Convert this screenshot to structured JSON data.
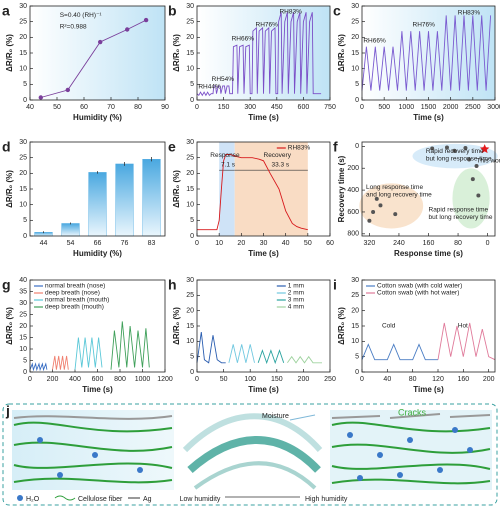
{
  "chart_data": [
    {
      "type": "line",
      "panel": "a",
      "xlabel": "Humidity (%)",
      "ylabel": "ΔR/R₀ (%)",
      "xlim": [
        40,
        90
      ],
      "xticks": [
        40,
        50,
        60,
        70,
        80,
        90
      ],
      "ylim": [
        0,
        30
      ],
      "yticks": [
        0,
        5,
        10,
        15,
        20,
        25,
        30
      ],
      "series": [
        {
          "color": "#7a3f9b",
          "markers": true,
          "x": [
            44,
            54,
            66,
            76,
            83
          ],
          "values": [
            0.8,
            3.2,
            18.5,
            22.5,
            25.5
          ]
        }
      ],
      "annotations": [
        "S=0.40 (RH)⁻¹",
        "R²=0.988"
      ]
    },
    {
      "type": "line",
      "panel": "b",
      "xlabel": "Time (s)",
      "ylabel": "ΔR/R₀ (%)",
      "xlim": [
        0,
        750
      ],
      "xticks": [
        0,
        150,
        300,
        450,
        600,
        750
      ],
      "ylim": [
        0,
        30
      ],
      "yticks": [
        0,
        5,
        10,
        15,
        20,
        25,
        30
      ],
      "series": [
        {
          "color": "#7b4fc8",
          "x": [
            0,
            10,
            20,
            30,
            40,
            50,
            60,
            70,
            80,
            90,
            95,
            105,
            110,
            120,
            130,
            135,
            145,
            155,
            160,
            170,
            180,
            185,
            200,
            205,
            225,
            230,
            240,
            260,
            265,
            275,
            295,
            300,
            310,
            315,
            335,
            340,
            350,
            370,
            375,
            385,
            405,
            410,
            420,
            440,
            445,
            455,
            460,
            475,
            480,
            495,
            510,
            515,
            530,
            545,
            550,
            565,
            580,
            585,
            600,
            615,
            620,
            635,
            650,
            655,
            700
          ],
          "values": [
            2,
            1.5,
            2.5,
            1.5,
            2.5,
            1.5,
            2.5,
            1.5,
            2,
            2,
            4.5,
            4.5,
            2,
            4.5,
            4.5,
            2,
            4.5,
            4.5,
            2,
            4.5,
            4.5,
            2,
            2,
            17,
            17.5,
            2,
            17,
            17.5,
            2,
            17,
            17.5,
            2,
            2,
            22,
            23,
            2,
            22,
            23,
            2,
            22,
            23,
            2,
            22,
            23,
            2,
            2,
            25,
            28,
            2,
            25,
            28,
            2,
            25,
            28,
            2,
            25,
            28,
            2,
            25,
            28,
            2,
            25,
            28,
            2,
            2
          ]
        }
      ],
      "annotations": [
        "RH44%",
        "RH54%",
        "RH66%",
        "RH76%",
        "RH83%"
      ]
    },
    {
      "type": "line",
      "panel": "c",
      "xlabel": "Time (s)",
      "ylabel": "ΔR/R₀ (%)",
      "xlim": [
        0,
        3000
      ],
      "xticks": [
        0,
        500,
        1000,
        1500,
        2000,
        2500,
        3000
      ],
      "ylim": [
        0,
        30
      ],
      "yticks": [
        0,
        5,
        10,
        15,
        20,
        25,
        30
      ],
      "series": [
        {
          "color": "#7a5bd0",
          "x": [
            0,
            100,
            200,
            300,
            400,
            500,
            600,
            700,
            800,
            900,
            1000,
            1100,
            1200,
            1300,
            1400,
            1500,
            1600,
            1700,
            1800,
            1900,
            2000,
            2100,
            2200,
            2300,
            2400,
            2500,
            2600,
            2700,
            2800,
            2900
          ],
          "values": [
            3,
            17,
            3,
            17,
            3,
            17,
            3,
            17,
            3,
            22,
            3,
            22,
            3,
            22,
            3,
            22,
            3,
            22,
            3,
            27,
            3,
            27,
            3,
            27,
            3,
            27,
            3,
            27,
            3,
            27
          ]
        }
      ],
      "annotations": [
        "RH66%",
        "RH76%",
        "RH83%"
      ]
    },
    {
      "type": "bar",
      "panel": "d",
      "xlabel": "Humidity (%)",
      "ylabel": "ΔR/R₀ (%)",
      "color": "#4aa8e0",
      "categories": [
        "44",
        "54",
        "66",
        "76",
        "83"
      ],
      "values": [
        1.2,
        4,
        20.3,
        23,
        24.5
      ],
      "errors": [
        0.3,
        0.3,
        0.4,
        0.6,
        0.7
      ],
      "ylim": [
        0,
        30
      ],
      "yticks": [
        0,
        5,
        10,
        15,
        20,
        25,
        30
      ]
    },
    {
      "type": "line",
      "panel": "e",
      "xlabel": "Time (s)",
      "ylabel": "ΔR/R₀ (%)",
      "legend": "upper right",
      "xlim": [
        0,
        60
      ],
      "xticks": [
        0,
        10,
        20,
        30,
        40,
        50,
        60
      ],
      "ylim": [
        0,
        30
      ],
      "yticks": [
        0,
        5,
        10,
        15,
        20,
        25,
        30
      ],
      "series": [
        {
          "name": "RH83%",
          "color": "#d7191c",
          "x": [
            0,
            5,
            9,
            10,
            11,
            12,
            13,
            15,
            17,
            20,
            25,
            28,
            30,
            33,
            37,
            40,
            43,
            45,
            47,
            50
          ],
          "values": [
            2,
            2,
            2,
            5,
            15,
            24,
            26,
            26,
            25.5,
            25,
            25,
            24.5,
            24,
            20,
            15,
            8,
            4,
            3,
            2.5,
            2
          ]
        }
      ],
      "annotations": [
        "Response",
        "7.1 s",
        "Recovery",
        "33.3 s"
      ]
    },
    {
      "type": "scatter",
      "panel": "f",
      "xlabel": "Response time (s)",
      "ylabel": "Recovery time (s)",
      "xlim": [
        340,
        -20
      ],
      "xticks": [
        320,
        240,
        160,
        80,
        0
      ],
      "ylim": [
        820,
        -40
      ],
      "yticks": [
        0,
        200,
        400,
        600,
        800
      ],
      "series": [
        {
          "color": "#e41a1c",
          "marker": "star",
          "x": [
            8
          ],
          "values": [
            25
          ]
        },
        {
          "color": "#555555",
          "x": [
            150,
            110,
            90,
            60,
            50,
            40,
            25,
            30,
            300,
            290,
            250,
            320,
            310
          ],
          "values": [
            20,
            10,
            40,
            15,
            120,
            300,
            450,
            180,
            480,
            540,
            620,
            680,
            600
          ]
        }
      ],
      "annotations": [
        "Rapid recovery time",
        "but long response time",
        "Long response time",
        "and long recovery time",
        "Rapid response time",
        "but long recovery time",
        "This work"
      ]
    },
    {
      "type": "line",
      "panel": "g",
      "xlabel": "Time (s)",
      "ylabel": "ΔR/R₀ (%)",
      "legend": "upper left",
      "xlim": [
        0,
        1200
      ],
      "xticks": [
        0,
        200,
        400,
        600,
        800,
        1000,
        1200
      ],
      "ylim": [
        0,
        40
      ],
      "yticks": [
        0,
        5,
        10,
        15,
        20,
        25,
        30,
        35,
        40
      ],
      "series": [
        {
          "name": "normal breath (nose)",
          "color": "#3b6fc4",
          "x": [
            0,
            20,
            30,
            50,
            60,
            80,
            90,
            110,
            120,
            140,
            150
          ],
          "values": [
            1,
            3.5,
            1,
            3.5,
            1,
            3.5,
            1,
            3.5,
            1,
            3.5,
            1
          ]
        },
        {
          "name": "deep breath (nose)",
          "color": "#f08070",
          "x": [
            200,
            220,
            235,
            255,
            270,
            290,
            305,
            325,
            340
          ],
          "values": [
            1,
            7,
            1,
            7,
            1,
            7,
            1,
            7,
            1
          ]
        },
        {
          "name": "normal breath (mouth)",
          "color": "#5bc8d8",
          "x": [
            400,
            430,
            460,
            490,
            520,
            550,
            580,
            610,
            640
          ],
          "values": [
            1,
            15,
            2,
            15,
            2,
            15,
            2,
            15,
            2
          ]
        },
        {
          "name": "deep breath (mouth)",
          "color": "#3fa05a",
          "x": [
            720,
            750,
            790,
            820,
            860,
            890,
            930,
            960,
            1000,
            1030,
            1060
          ],
          "values": [
            1,
            18,
            2,
            22,
            2,
            20,
            2,
            18,
            2,
            19,
            2
          ]
        }
      ]
    },
    {
      "type": "line",
      "panel": "h",
      "xlabel": "Time (s)",
      "ylabel": "ΔR/R₀ (%)",
      "legend": "upper right",
      "xlim": [
        0,
        250
      ],
      "xticks": [
        0,
        50,
        100,
        150,
        200,
        250
      ],
      "ylim": [
        0,
        30
      ],
      "yticks": [
        0,
        5,
        10,
        15,
        20,
        25,
        30
      ],
      "series": [
        {
          "name": "1 mm",
          "color": "#2a5db0",
          "x": [
            0,
            8,
            14,
            22,
            30,
            38,
            46,
            54
          ],
          "values": [
            3,
            13,
            4,
            3,
            12,
            4,
            3,
            3
          ]
        },
        {
          "name": "2 mm",
          "color": "#70c8e0",
          "x": [
            60,
            68,
            76,
            84,
            92,
            100,
            108
          ],
          "values": [
            3,
            9,
            3,
            9,
            3,
            9,
            3
          ]
        },
        {
          "name": "3 mm",
          "color": "#2aa3a0",
          "x": [
            115,
            123,
            131,
            139,
            147,
            155,
            163
          ],
          "values": [
            3,
            7,
            3,
            7,
            3,
            7,
            3
          ]
        },
        {
          "name": "4 mm",
          "color": "#9fd39f",
          "x": [
            170,
            178,
            186,
            194,
            202,
            210,
            218,
            235
          ],
          "values": [
            3,
            5,
            3,
            5,
            3,
            5,
            3,
            3
          ]
        }
      ]
    },
    {
      "type": "line",
      "panel": "i",
      "xlabel": "Time (s)",
      "ylabel": "ΔR/R₀ (%)",
      "legend": "upper left",
      "xlim": [
        0,
        210
      ],
      "xticks": [
        0,
        40,
        80,
        120,
        160,
        200
      ],
      "ylim": [
        0,
        30
      ],
      "yticks": [
        0,
        5,
        10,
        15,
        20,
        25,
        30
      ],
      "series": [
        {
          "name": "Cotton swab (with cold water)",
          "color": "#4a7dc4",
          "x": [
            0,
            10,
            20,
            40,
            50,
            60,
            80,
            90,
            100,
            120
          ],
          "values": [
            4,
            9,
            4,
            4,
            9,
            4,
            4,
            9,
            4,
            4
          ]
        },
        {
          "name": "Cotton swab (with hot water)",
          "color": "#e07a9a",
          "x": [
            120,
            130,
            140,
            150,
            160,
            170,
            180,
            190,
            200,
            210
          ],
          "values": [
            4,
            16,
            5,
            15,
            5,
            16,
            5,
            14,
            5,
            4
          ]
        }
      ],
      "annotations": [
        "Cold",
        "Hot"
      ]
    }
  ],
  "diagram": {
    "panel": "j",
    "labels": {
      "moisture": "Moisture",
      "cracks": "Cracks",
      "low": "Low humidity",
      "high": "High humidity"
    },
    "legend": [
      "H₂O",
      "Cellulose fiber",
      "Ag"
    ]
  }
}
